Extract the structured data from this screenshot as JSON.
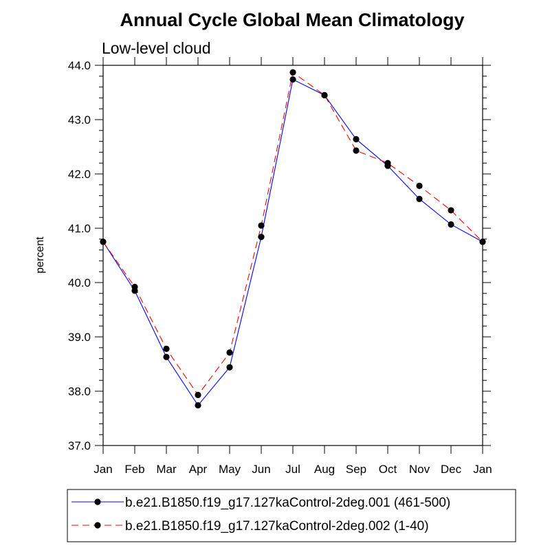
{
  "chart_data": {
    "type": "line",
    "title": "Annual Cycle Global Mean Climatology",
    "subtitle": "Low-level cloud",
    "xlabel": "",
    "ylabel": "percent",
    "categories": [
      "Jan",
      "Feb",
      "Mar",
      "Apr",
      "May",
      "Jun",
      "Jul",
      "Aug",
      "Sep",
      "Oct",
      "Nov",
      "Dec",
      "Jan"
    ],
    "ylim": [
      37.0,
      44.0
    ],
    "yticks": [
      "37.0",
      "38.0",
      "39.0",
      "40.0",
      "41.0",
      "42.0",
      "43.0",
      "44.0"
    ],
    "grid": false,
    "legend_position": "bottom",
    "series": [
      {
        "name": "b.e21.B1850.f19_g17.127kaControl-2deg.001 (461-500)",
        "color": "#0000ff",
        "dash": "solid",
        "values": [
          40.75,
          39.85,
          38.63,
          37.74,
          38.44,
          40.84,
          43.74,
          43.45,
          42.64,
          42.15,
          41.54,
          41.07,
          40.75
        ]
      },
      {
        "name": "b.e21.B1850.f19_g17.127kaControl-2deg.002 (1-40)",
        "color": "#ff0000",
        "dash": "dashed",
        "values": [
          40.75,
          39.92,
          38.78,
          37.93,
          38.71,
          41.05,
          43.87,
          43.45,
          42.43,
          42.2,
          41.78,
          41.33,
          40.75
        ]
      }
    ]
  }
}
